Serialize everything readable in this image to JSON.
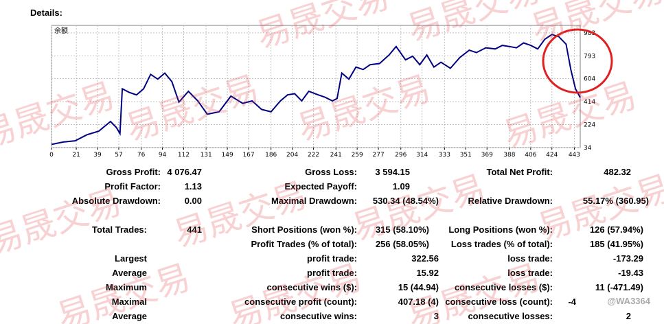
{
  "details_label": "Details:",
  "chart_data": {
    "type": "line",
    "title": "余额",
    "xlabel": "",
    "ylabel": "",
    "x_ticks": [
      0,
      21,
      39,
      57,
      76,
      94,
      112,
      131,
      149,
      167,
      186,
      204,
      222,
      241,
      259,
      277,
      296,
      314,
      333,
      351,
      369,
      388,
      406,
      424,
      443
    ],
    "y_ticks": [
      34,
      224,
      414,
      604,
      793,
      983
    ],
    "xlim": [
      0,
      448
    ],
    "ylim": [
      34,
      1045
    ],
    "grid": true,
    "series": [
      {
        "color": "#000080",
        "points": [
          [
            0,
            60
          ],
          [
            10,
            80
          ],
          [
            20,
            90
          ],
          [
            30,
            140
          ],
          [
            40,
            170
          ],
          [
            50,
            250
          ],
          [
            55,
            200
          ],
          [
            58,
            150
          ],
          [
            60,
            520
          ],
          [
            66,
            490
          ],
          [
            72,
            470
          ],
          [
            78,
            520
          ],
          [
            84,
            640
          ],
          [
            90,
            600
          ],
          [
            96,
            650
          ],
          [
            102,
            580
          ],
          [
            108,
            410
          ],
          [
            116,
            500
          ],
          [
            124,
            420
          ],
          [
            132,
            310
          ],
          [
            142,
            330
          ],
          [
            152,
            460
          ],
          [
            162,
            400
          ],
          [
            170,
            420
          ],
          [
            178,
            350
          ],
          [
            186,
            330
          ],
          [
            194,
            420
          ],
          [
            200,
            470
          ],
          [
            206,
            480
          ],
          [
            212,
            420
          ],
          [
            218,
            500
          ],
          [
            226,
            470
          ],
          [
            232,
            450
          ],
          [
            238,
            420
          ],
          [
            242,
            440
          ],
          [
            246,
            650
          ],
          [
            252,
            600
          ],
          [
            258,
            700
          ],
          [
            264,
            680
          ],
          [
            270,
            720
          ],
          [
            278,
            730
          ],
          [
            286,
            800
          ],
          [
            292,
            870
          ],
          [
            300,
            760
          ],
          [
            306,
            790
          ],
          [
            312,
            720
          ],
          [
            318,
            800
          ],
          [
            324,
            700
          ],
          [
            330,
            740
          ],
          [
            338,
            690
          ],
          [
            346,
            780
          ],
          [
            354,
            840
          ],
          [
            360,
            820
          ],
          [
            368,
            860
          ],
          [
            376,
            850
          ],
          [
            382,
            880
          ],
          [
            388,
            870
          ],
          [
            394,
            860
          ],
          [
            400,
            900
          ],
          [
            406,
            880
          ],
          [
            412,
            850
          ],
          [
            418,
            930
          ],
          [
            424,
            970
          ],
          [
            430,
            950
          ],
          [
            436,
            890
          ],
          [
            440,
            680
          ],
          [
            444,
            520
          ],
          [
            448,
            448
          ]
        ]
      }
    ]
  },
  "stats": {
    "gross_profit": {
      "label": "Gross Profit:",
      "value": "4 076.47"
    },
    "gross_loss": {
      "label": "Gross Loss:",
      "value": "3 594.15"
    },
    "total_net_profit": {
      "label": "Total Net Profit:",
      "value": "482.32"
    },
    "profit_factor": {
      "label": "Profit Factor:",
      "value": "1.13"
    },
    "expected_payoff": {
      "label": "Expected Payoff:",
      "value": "1.09"
    },
    "absolute_drawdown": {
      "label": "Absolute Drawdown:",
      "value": "0.00"
    },
    "maximal_drawdown": {
      "label": "Maximal Drawdown:",
      "value": "530.34 (48.54%)"
    },
    "relative_drawdown": {
      "label": "Relative Drawdown:",
      "value": "55.17% (360.95)"
    },
    "total_trades": {
      "label": "Total Trades:",
      "value": "441"
    },
    "short_positions": {
      "label": "Short Positions (won %):",
      "value": "315 (58.10%)"
    },
    "long_positions": {
      "label": "Long Positions (won %):",
      "value": "126 (57.94%)"
    },
    "profit_trades": {
      "label": "Profit Trades (% of total):",
      "value": "256 (58.05%)"
    },
    "loss_trades": {
      "label": "Loss trades (% of total):",
      "value": "185 (41.95%)"
    },
    "rows": [
      {
        "left": "Largest",
        "mid_label": "profit trade:",
        "mid_value": "322.56",
        "right_label": "loss trade:",
        "right_value": "-173.29"
      },
      {
        "left": "Average",
        "mid_label": "profit trade:",
        "mid_value": "15.92",
        "right_label": "loss trade:",
        "right_value": "-19.43"
      },
      {
        "left": "Maximum",
        "mid_label": "consecutive wins ($):",
        "mid_value": "15 (44.94)",
        "right_label": "consecutive losses ($):",
        "right_value": "11 (-471.49)"
      },
      {
        "left": "Maximal",
        "mid_label": "consecutive profit (count):",
        "mid_value": "407.18 (4)",
        "right_label": "consecutive loss (count):",
        "right_value": "-4"
      },
      {
        "left": "Average",
        "mid_label": "consecutive wins:",
        "mid_value": "3",
        "right_label": "consecutive losses:",
        "right_value": "2"
      }
    ]
  },
  "watermark": {
    "text": "易晟交易",
    "handle": "@WA3364",
    "color": "#e2494f"
  },
  "annotation": {
    "color": "#e02020"
  }
}
